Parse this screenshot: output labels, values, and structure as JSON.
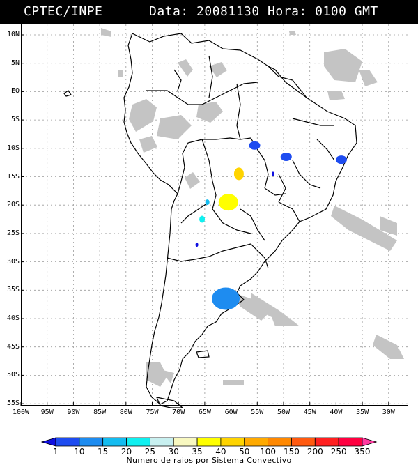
{
  "header": {
    "source": "CPTEC/INPE",
    "datetime": "Data: 20081130 Hora: 0100 GMT"
  },
  "axes": {
    "latitude_labels": [
      "10N",
      "5N",
      "EQ",
      "5S",
      "10S",
      "15S",
      "20S",
      "25S",
      "30S",
      "35S",
      "40S",
      "45S",
      "50S",
      "55S"
    ],
    "longitude_labels": [
      "100W",
      "95W",
      "90W",
      "85W",
      "80W",
      "75W",
      "70W",
      "65W",
      "60W",
      "55W",
      "50W",
      "45W",
      "40W",
      "35W",
      "30W"
    ]
  },
  "legend": {
    "caption": "Numero de raios por Sistema Convectivo",
    "values": [
      "1",
      "10",
      "15",
      "20",
      "25",
      "30",
      "35",
      "40",
      "50",
      "100",
      "150",
      "200",
      "250",
      "350"
    ],
    "colors": [
      "#1010e0",
      "#1e4cf0",
      "#1e8cf0",
      "#14bcf0",
      "#10f0f0",
      "#c8f0f0",
      "#f8f8c0",
      "#ffff00",
      "#ffd400",
      "#ffaa00",
      "#ff8800",
      "#ff5a10",
      "#ff2020",
      "#ff0040",
      "#ff3aa0"
    ]
  },
  "map_colors": {
    "land_outline": "#000000",
    "grid": "#9a9a9a",
    "clouds": "#c4c4c4"
  },
  "convective_systems": [
    {
      "lon": -60.5,
      "lat": -19.5,
      "color_index": 7
    },
    {
      "lon": -58.5,
      "lat": -14.5,
      "color_index": 8
    },
    {
      "lon": -61,
      "lat": -36.5,
      "color_index": 2
    },
    {
      "lon": -39,
      "lat": -12,
      "color_index": 1
    },
    {
      "lon": -49.5,
      "lat": -11.5,
      "color_index": 1
    },
    {
      "lon": -55.5,
      "lat": -9.5,
      "color_index": 1
    },
    {
      "lon": -64.5,
      "lat": -19.5,
      "color_index": 3
    },
    {
      "lon": -65.5,
      "lat": -22.5,
      "color_index": 4
    },
    {
      "lon": -52,
      "lat": -14.5,
      "color_index": 0
    },
    {
      "lon": -66.5,
      "lat": -27,
      "color_index": 0
    }
  ]
}
